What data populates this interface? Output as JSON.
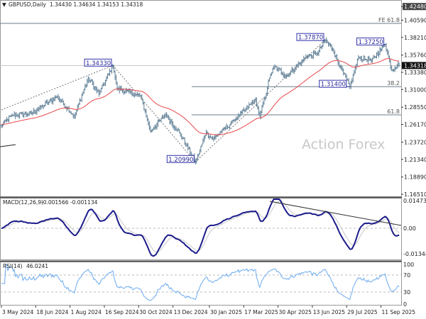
{
  "header": {
    "symbol": "GBPUSD,Daily",
    "ohlc": "1.34430 1.34634 1.34153 1.34318"
  },
  "watermark": "Action Forex",
  "colors": {
    "bars": "#5f7f96",
    "ma": "#e8474a",
    "macd": "#1c1c8c",
    "signal": "#c8c8c8",
    "rsi": "#6aaaf0",
    "label_box": "#3333aa",
    "current_price_bg": "#111111"
  },
  "chart_data": [
    {
      "type": "line",
      "title": "GBPUSD,Daily",
      "subtype": "ohlc-bars",
      "ylim": [
        1.1651,
        1.4248
      ],
      "price_ticks": [
        "1.42480",
        "1.40590",
        "1.38210",
        "1.35760",
        "1.33380",
        "1.31000",
        "1.28550",
        "1.26170",
        "1.23720",
        "1.21340",
        "1.18890",
        "1.16510"
      ],
      "current_price": "1.34318",
      "date_ticks": [
        "3 May 2024",
        "18 Jun 2024",
        "1 Aug 2024",
        "16 Sep 2024",
        "30 Oct 2024",
        "13 Dec 2024",
        "30 Jan 2025",
        "17 Mar 2025",
        "30 Apr 2025",
        "13 Jun 2025",
        "29 Jul 2025",
        "11 Sep 2025"
      ],
      "path": [
        [
          "2024-05-03",
          1.2602
        ],
        [
          "2024-05-16",
          1.274
        ],
        [
          "2024-06-12",
          1.277
        ],
        [
          "2024-07-16",
          1.3
        ],
        [
          "2024-08-07",
          1.273
        ],
        [
          "2024-08-26",
          1.326
        ],
        [
          "2024-09-09",
          1.304
        ],
        [
          "2024-09-26",
          1.3433
        ],
        [
          "2024-10-02",
          1.311
        ],
        [
          "2024-11-01",
          1.301
        ],
        [
          "2024-11-14",
          1.252
        ],
        [
          "2024-12-04",
          1.275
        ],
        [
          "2024-12-24",
          1.248
        ],
        [
          "2025-01-13",
          1.2099
        ],
        [
          "2025-01-27",
          1.251
        ],
        [
          "2025-02-04",
          1.241
        ],
        [
          "2025-03-04",
          1.267
        ],
        [
          "2025-04-01",
          1.296
        ],
        [
          "2025-04-07",
          1.272
        ],
        [
          "2025-04-21",
          1.331
        ],
        [
          "2025-04-25",
          1.342
        ],
        [
          "2025-05-12",
          1.328
        ],
        [
          "2025-06-05",
          1.355
        ],
        [
          "2025-06-20",
          1.36
        ],
        [
          "2025-07-01",
          1.3787
        ],
        [
          "2025-07-10",
          1.365
        ],
        [
          "2025-07-21",
          1.341
        ],
        [
          "2025-08-01",
          1.314
        ],
        [
          "2025-08-13",
          1.355
        ],
        [
          "2025-08-29",
          1.35
        ],
        [
          "2025-09-17",
          1.3725
        ],
        [
          "2025-09-25",
          1.336
        ],
        [
          "2025-10-03",
          1.3456
        ],
        [
          "2025-10-06",
          1.3432
        ]
      ],
      "swing_labels": [
        {
          "date": "2024-09-26",
          "price": 1.3433,
          "text": "1.34330"
        },
        {
          "date": "2025-01-13",
          "price": 1.2099,
          "text": "1.20990"
        },
        {
          "date": "2025-07-01",
          "price": 1.3787,
          "text": "1.37870"
        },
        {
          "date": "2025-09-17",
          "price": 1.3725,
          "text": "1.37250"
        },
        {
          "date": "2025-08-01",
          "price": 1.314,
          "text": "1.31400"
        }
      ],
      "fib_levels": [
        {
          "label": "FE 61.8",
          "price": 1.4015
        },
        {
          "label": "38.2",
          "price": 1.314
        },
        {
          "label": "61.8",
          "price": 1.275
        }
      ],
      "moving_average": "red line"
    },
    {
      "type": "line",
      "title": "MACD(12,26,9) -0.001566 -0.001134",
      "title_name": "MACD(12,26,9)",
      "values_text": "-0.001566 -0.001134",
      "ylim": [
        -0.013442,
        0.014734
      ],
      "y_ticks": [
        "0.014734",
        "0.00",
        "-0.013442"
      ],
      "series": [
        "macd",
        "signal"
      ]
    },
    {
      "type": "line",
      "title": "RSI(14) 46.0241",
      "title_name": "RSI(14)",
      "value_text": "46.0241",
      "ylim": [
        0,
        100
      ],
      "y_ticks": [
        "100",
        "70",
        "30",
        "0"
      ],
      "levels": [
        70,
        30
      ]
    }
  ]
}
